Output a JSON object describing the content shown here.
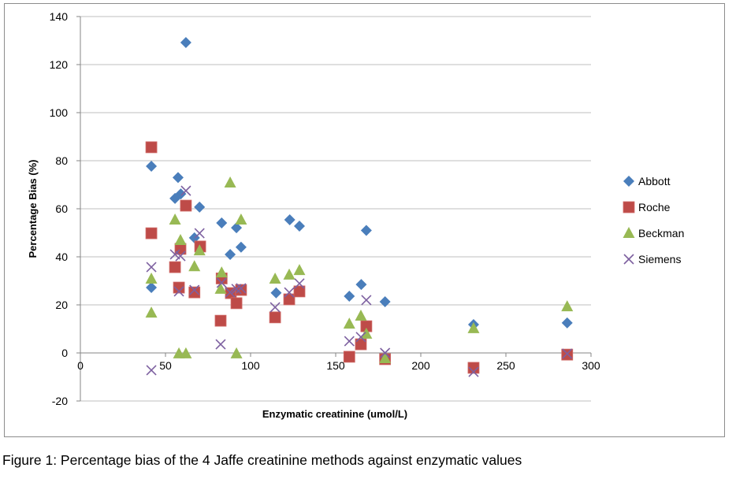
{
  "caption": "Figure 1: Percentage bias of the 4 Jaffe creatinine methods against enzymatic values",
  "chart_data": {
    "type": "scatter",
    "title": "",
    "xlabel": "Enzymatic creatinine (umol/L)",
    "ylabel": "Percentage  Bias (%)",
    "xlim": [
      0,
      300
    ],
    "ylim": [
      -20,
      140
    ],
    "xticks": [
      0,
      50,
      100,
      150,
      200,
      250,
      300
    ],
    "yticks": [
      -20,
      0,
      20,
      40,
      60,
      80,
      100,
      120,
      140
    ],
    "grid": "horizontal",
    "legend": "right",
    "series": [
      {
        "name": "Abbott",
        "marker": "diamond",
        "color": "#4a7ebb",
        "points": [
          [
            41.7,
            77.7
          ],
          [
            41.7,
            27.2
          ],
          [
            62,
            129.2
          ],
          [
            57.4,
            73
          ],
          [
            55.6,
            64.3
          ],
          [
            59,
            66.2
          ],
          [
            70,
            60.7
          ],
          [
            67,
            47.9
          ],
          [
            83,
            54.1
          ],
          [
            88,
            41
          ],
          [
            91.7,
            52.1
          ],
          [
            94.4,
            44
          ],
          [
            123,
            55.4
          ],
          [
            128.7,
            52.8
          ],
          [
            115,
            25
          ],
          [
            158,
            23.6
          ],
          [
            165,
            28.5
          ],
          [
            168,
            51
          ],
          [
            179,
            21.3
          ],
          [
            231,
            11.8
          ],
          [
            286,
            12.5
          ]
        ]
      },
      {
        "name": "Roche",
        "marker": "square",
        "color": "#be4b48",
        "points": [
          [
            41.7,
            85.6
          ],
          [
            41.7,
            49.8
          ],
          [
            62,
            61.3
          ],
          [
            58.8,
            43.3
          ],
          [
            55.6,
            35.7
          ],
          [
            57.9,
            27.2
          ],
          [
            70.4,
            44.3
          ],
          [
            67,
            25.2
          ],
          [
            83,
            31
          ],
          [
            82.4,
            13.4
          ],
          [
            88.4,
            24.9
          ],
          [
            91.7,
            20.7
          ],
          [
            94.4,
            26.2
          ],
          [
            114.4,
            14.8
          ],
          [
            122.7,
            22.3
          ],
          [
            128.7,
            25.6
          ],
          [
            158,
            -1.6
          ],
          [
            164.8,
            3.6
          ],
          [
            168,
            11.1
          ],
          [
            179,
            -2.6
          ],
          [
            231,
            -6.2
          ],
          [
            286,
            -0.7
          ]
        ]
      },
      {
        "name": "Beckman",
        "marker": "triangle",
        "color": "#98b954",
        "points": [
          [
            41.7,
            30.8
          ],
          [
            41.7,
            16.7
          ],
          [
            55.6,
            55.4
          ],
          [
            58.8,
            46.9
          ],
          [
            57.9,
            -0.3
          ],
          [
            62,
            -0.3
          ],
          [
            70,
            42.6
          ],
          [
            67,
            36
          ],
          [
            83,
            33.4
          ],
          [
            82.4,
            26.6
          ],
          [
            88,
            70.8
          ],
          [
            91.7,
            -0.3
          ],
          [
            94.4,
            55.4
          ],
          [
            114.4,
            30.8
          ],
          [
            122.7,
            32.5
          ],
          [
            128.7,
            34.4
          ],
          [
            158,
            12.1
          ],
          [
            164.8,
            15.4
          ],
          [
            168,
            7.9
          ],
          [
            179,
            -2.3
          ],
          [
            231,
            10.2
          ],
          [
            286,
            19.3
          ]
        ]
      },
      {
        "name": "Siemens",
        "marker": "x",
        "color": "#7d60a0",
        "points": [
          [
            41.7,
            -7.2
          ],
          [
            41.7,
            35.7
          ],
          [
            55.6,
            41
          ],
          [
            58.8,
            40.3
          ],
          [
            57.9,
            25.6
          ],
          [
            62,
            67.5
          ],
          [
            70,
            49.8
          ],
          [
            67,
            26.2
          ],
          [
            83,
            29.2
          ],
          [
            82.4,
            3.6
          ],
          [
            88,
            25.2
          ],
          [
            91.7,
            26.6
          ],
          [
            94.4,
            26.9
          ],
          [
            114.4,
            19
          ],
          [
            122.7,
            25.2
          ],
          [
            128.7,
            28.9
          ],
          [
            158,
            4.9
          ],
          [
            164.8,
            6.6
          ],
          [
            168,
            22
          ],
          [
            179,
            0
          ],
          [
            231,
            -7.9
          ],
          [
            286,
            -0.3
          ]
        ]
      }
    ]
  }
}
